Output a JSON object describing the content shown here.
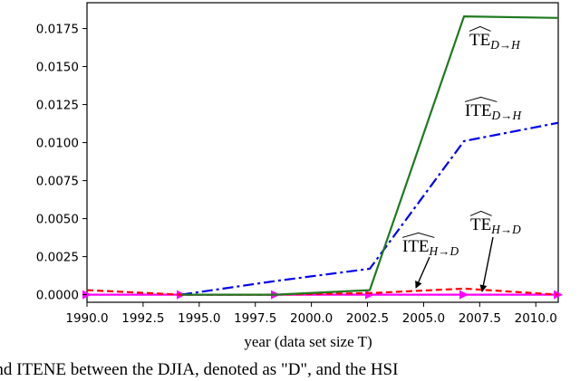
{
  "chart_data": {
    "type": "line",
    "title": "",
    "xlabel": "year (data set size T)",
    "ylabel": "",
    "xlim": [
      1990.0,
      2011.0
    ],
    "ylim": [
      -0.0005,
      0.0192
    ],
    "x_ticks": [
      1990.0,
      1992.5,
      1995.0,
      1997.5,
      2000.0,
      2002.5,
      2005.0,
      2007.5,
      2010.0
    ],
    "x_tick_labels": [
      "1990.0",
      "1992.5",
      "1995.0",
      "1997.5",
      "2000.0",
      "2002.5",
      "2005.0",
      "2007.5",
      "2010.0"
    ],
    "y_ticks": [
      0.0,
      0.0025,
      0.005,
      0.0075,
      0.01,
      0.0125,
      0.015,
      0.0175
    ],
    "y_tick_labels": [
      "0.0000",
      "0.0025",
      "0.0050",
      "0.0075",
      "0.0100",
      "0.0125",
      "0.0150",
      "0.0175"
    ],
    "grid": false,
    "series": [
      {
        "name": "TE_{D→H}",
        "color": "#1f7a1f",
        "style": "solid",
        "x": [
          1994.2,
          1998.4,
          2002.6,
          2006.8,
          2011.0
        ],
        "y": [
          0.0,
          0.0,
          0.0003,
          0.0183,
          0.0182
        ]
      },
      {
        "name": "ITE_{D→H}",
        "color": "#0000ee",
        "style": "dashdot",
        "x": [
          1994.2,
          1998.4,
          2002.6,
          2006.8,
          2011.0
        ],
        "y": [
          0.0,
          0.0009,
          0.0017,
          0.0101,
          0.0113
        ]
      },
      {
        "name": "ITE_{H→D}",
        "color": "#ff0000",
        "style": "dashed",
        "x": [
          1990.0,
          1994.2,
          1998.4,
          2002.6,
          2006.8,
          2011.0
        ],
        "y": [
          0.0003,
          0.0,
          0.0,
          0.0001,
          0.0004,
          0.0
        ]
      },
      {
        "name": "TE_{H→D}",
        "color": "#ff00ff",
        "style": "solid-triangle",
        "x": [
          1990.0,
          1994.2,
          1998.4,
          2002.6,
          2006.8,
          2011.0
        ],
        "y": [
          0.0,
          0.0,
          0.0,
          0.0,
          0.0,
          0.0
        ]
      }
    ],
    "annotations": [
      {
        "base": "TE",
        "sub": "D→H"
      },
      {
        "base": "ITE",
        "sub": "D→H"
      },
      {
        "base": "TE",
        "sub": "H→D"
      },
      {
        "base": "ITE",
        "sub": "H→D"
      }
    ]
  },
  "caption": "and ITENE between the DJIA, denoted as \"D\", and the HSI"
}
